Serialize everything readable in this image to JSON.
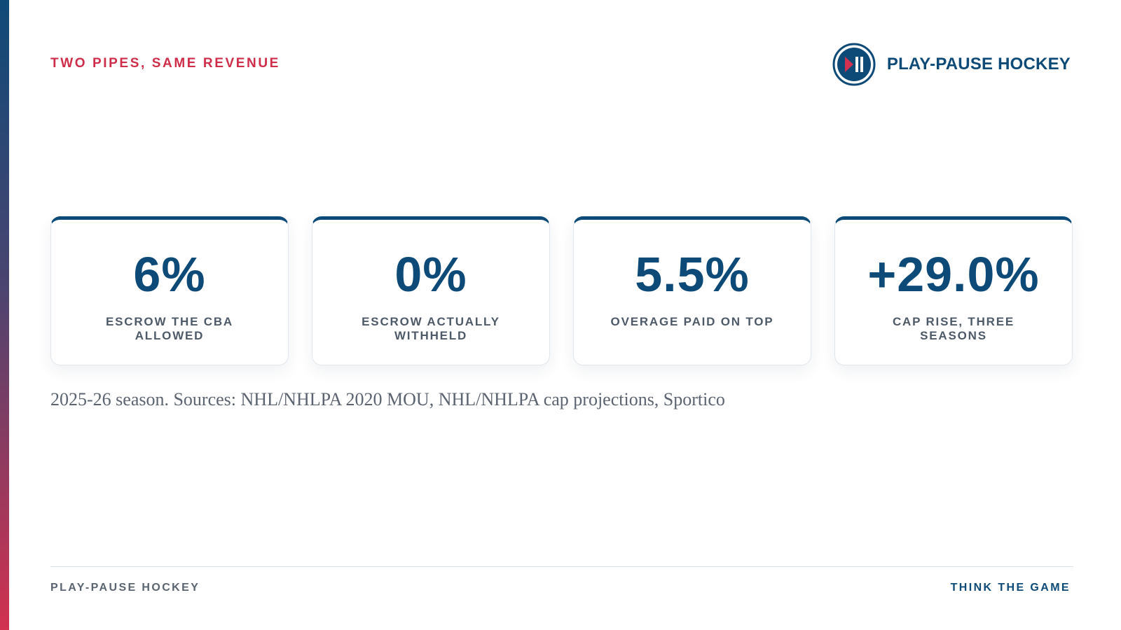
{
  "header": {
    "kicker": "TWO PIPES, SAME REVENUE",
    "brand_name": "PLAY-PAUSE HOCKEY",
    "logo_icon": "play-pause-icon"
  },
  "stats": [
    {
      "value": "6%",
      "label": "ESCROW THE CBA ALLOWED"
    },
    {
      "value": "0%",
      "label": "ESCROW ACTUALLY WITHHELD"
    },
    {
      "value": "5.5%",
      "label": "OVERAGE PAID ON TOP"
    },
    {
      "value": "+29.0%",
      "label": "CAP RISE, THREE SEASONS"
    }
  ],
  "source_note": "2025-26 season. Sources: NHL/NHLPA 2020 MOU, NHL/NHLPA cap projections, Sportico",
  "footer": {
    "left": "PLAY-PAUSE HOCKEY",
    "right": "THINK THE GAME"
  },
  "colors": {
    "navy": "#0e4a77",
    "red": "#cf2e4b",
    "gray_text": "#4e5a68"
  }
}
